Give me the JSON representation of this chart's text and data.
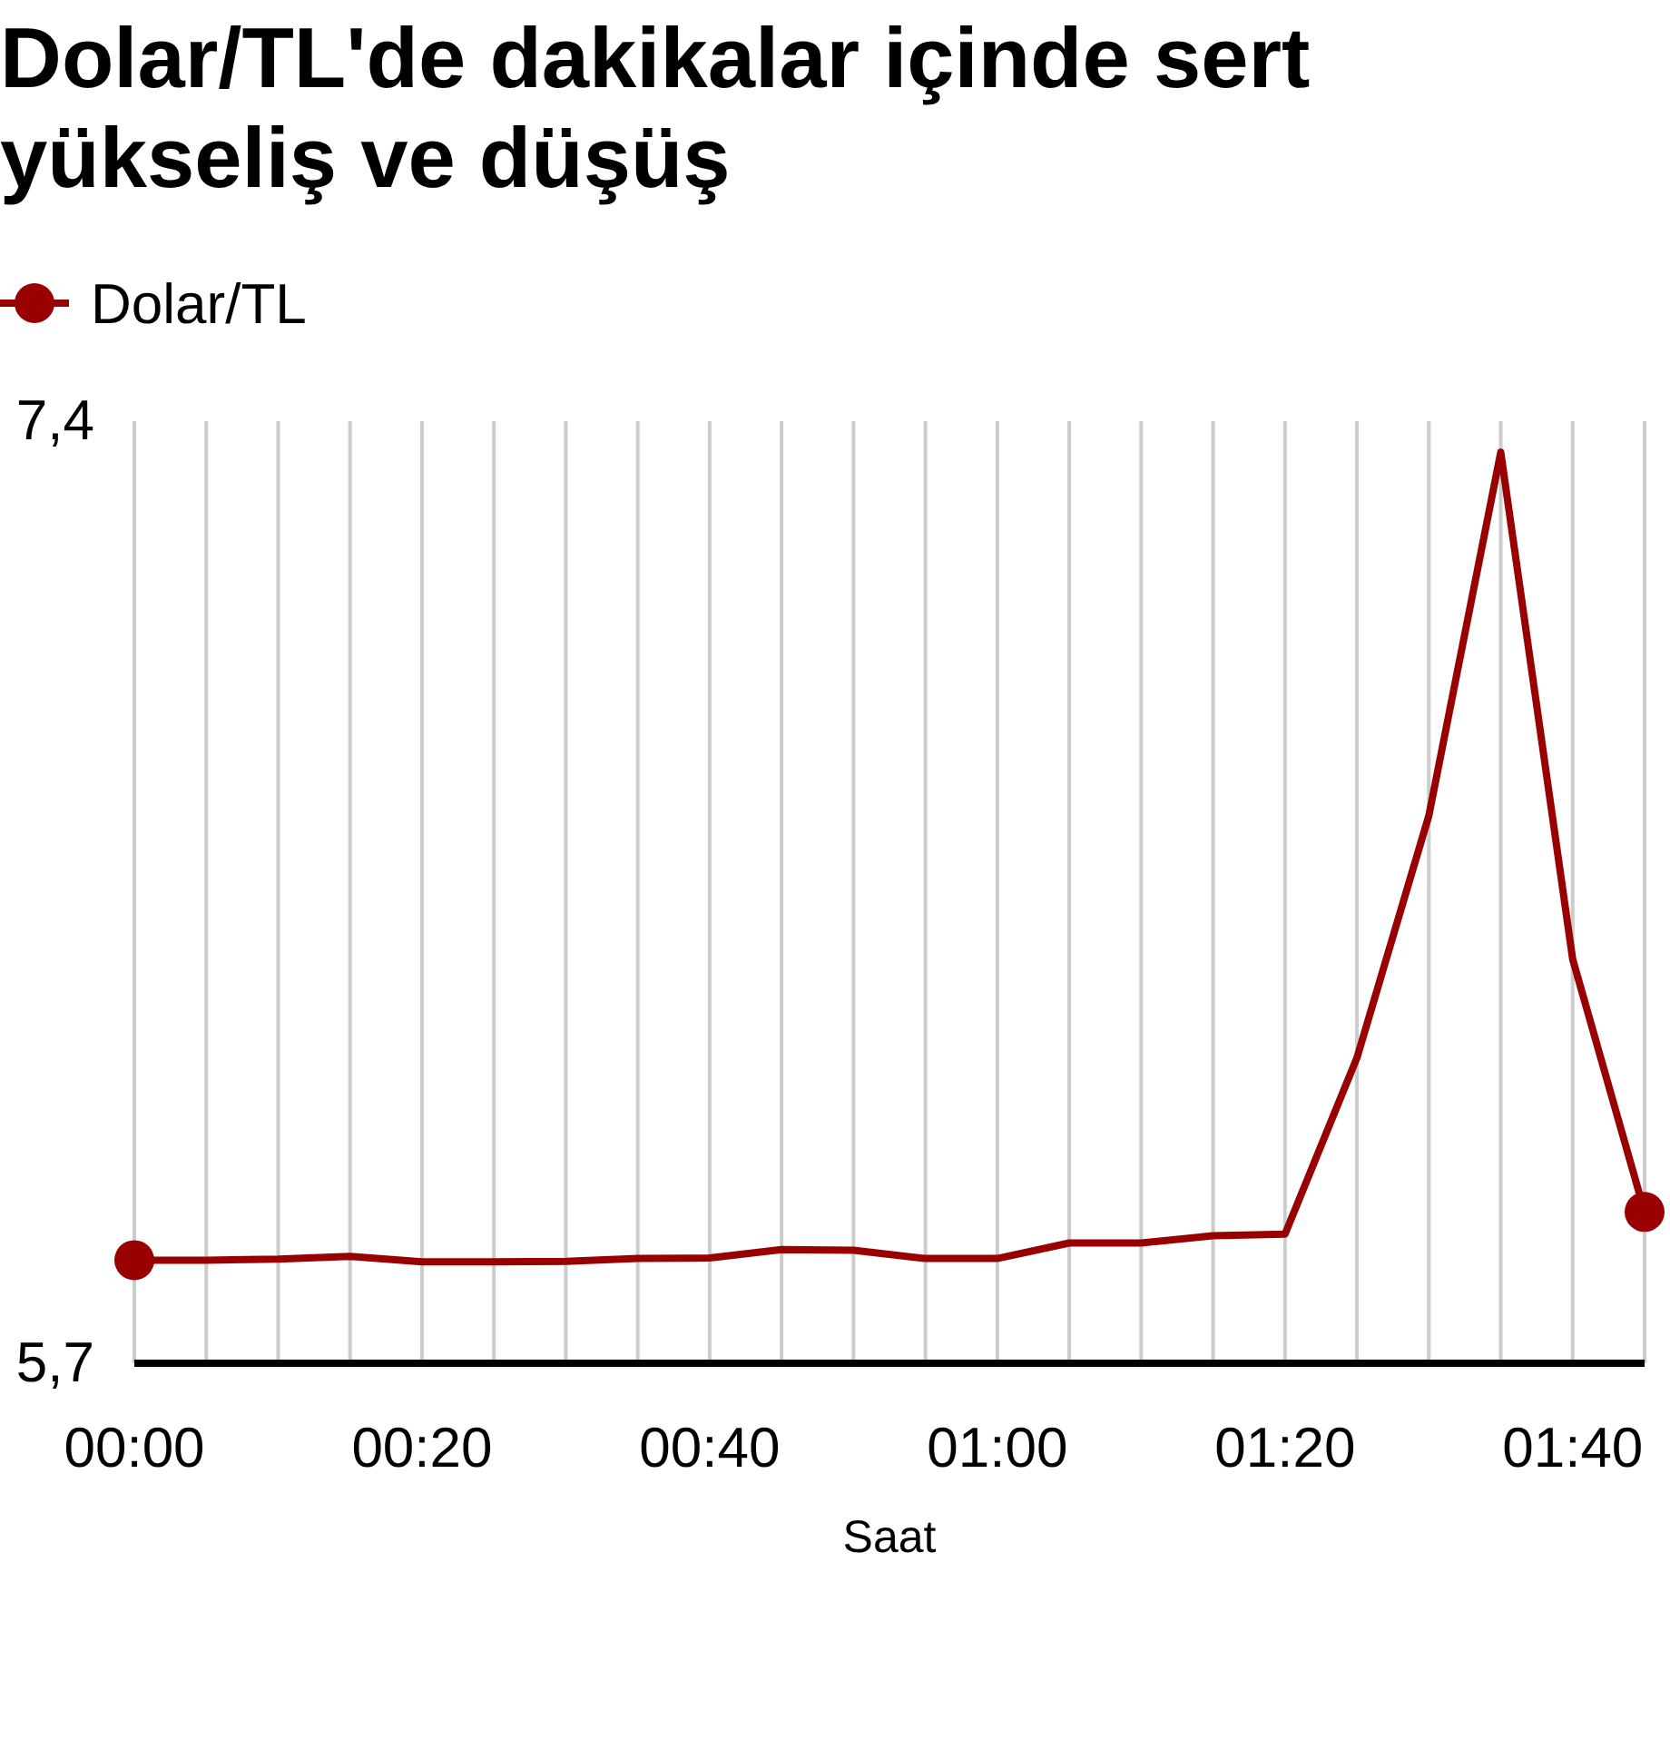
{
  "chart_data": {
    "type": "line",
    "title": "Dolar/TL'de dakikalar içinde sert yükseliş ve düşüş",
    "xlabel": "Saat",
    "categories": [
      "00:00",
      null,
      null,
      null,
      "00:20",
      null,
      null,
      null,
      "00:40",
      null,
      null,
      null,
      "01:00",
      null,
      null,
      null,
      "01:20",
      null,
      null,
      null,
      "01:40",
      null
    ],
    "series": [
      {
        "name": "Dolar/TL",
        "color": "#990000",
        "values": [
          5.886,
          5.886,
          5.888,
          5.893,
          5.883,
          5.883,
          5.884,
          5.889,
          5.89,
          5.905,
          5.904,
          5.889,
          5.889,
          5.917,
          5.917,
          5.93,
          5.933,
          6.251,
          6.688,
          7.344,
          6.429,
          5.973
        ]
      },
      {
        "type": "scatter",
        "color": "#990000",
        "marker": "circle",
        "values": [
          5.886,
          null,
          null,
          null,
          null,
          null,
          null,
          null,
          null,
          null,
          null,
          null,
          null,
          null,
          null,
          null,
          null,
          null,
          null,
          null,
          null,
          5.973
        ]
      }
    ],
    "ylim": [
      5.7,
      7.4
    ],
    "yticks": [
      {
        "value": 5.7,
        "label": "5,7"
      },
      {
        "value": 7.4,
        "label": "7,4"
      }
    ],
    "grid": "x",
    "legend": "top left"
  }
}
